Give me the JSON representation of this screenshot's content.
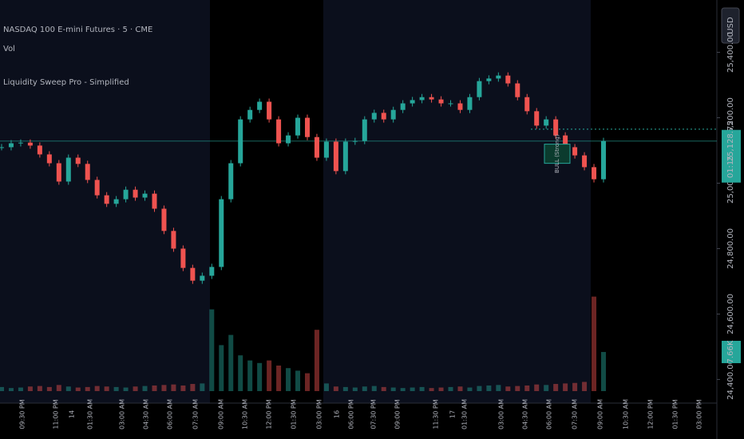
{
  "chart_data": {
    "type": "candlestick",
    "title": "NASDAQ 100 E-mini Futures · 5 · CME",
    "indicator": "Liquidity Sweep Pro - Simplified",
    "currency": "USD",
    "categories": [
      null,
      null,
      null,
      null,
      null,
      null,
      null,
      null,
      null,
      null,
      null,
      null,
      null,
      null,
      null,
      null,
      null,
      null,
      null,
      null,
      null,
      null,
      null,
      null,
      null,
      null,
      null,
      null,
      null,
      null,
      null,
      null,
      null,
      null,
      null,
      null,
      null,
      null,
      null,
      null,
      null,
      null,
      null,
      null,
      null,
      null,
      null,
      null,
      null,
      null,
      null,
      null,
      null,
      null,
      null,
      null,
      null,
      null,
      null,
      null,
      null,
      null,
      null,
      null
    ],
    "series": [
      {
        "name": "NASDAQ 100 E-mini Futures · 5 · CME",
        "up_color": "#26a69a",
        "down_color": "#ef5350",
        "values": [
          25110,
          25122,
          25124,
          25115,
          25088,
          25061,
          25005,
          25078,
          25059,
          25010,
          24963,
          24937,
          24951,
          24980,
          24956,
          24968,
          24922,
          24854,
          24800,
          24741,
          24702,
          24717,
          24744,
          24951,
          25061,
          25195,
          25224,
          25249,
          25195,
          25122,
          25146,
          25200,
          25141,
          25078,
          25127,
          25037,
          25127,
          25129,
          25195,
          25215,
          25195,
          25224,
          25244,
          25254,
          25263,
          25256,
          25244,
          25244,
          25224,
          25263,
          25312,
          25320,
          25329,
          25305,
          25263,
          25220,
          25176,
          25195,
          25146,
          25110,
          25085,
          25049,
          25012,
          25129
        ]
      },
      {
        "name": "Vol",
        "axis": "y2",
        "values": [
          800,
          600,
          700,
          900,
          1000,
          800,
          1200,
          900,
          700,
          800,
          1000,
          900,
          800,
          700,
          900,
          1000,
          1100,
          1200,
          1300,
          1100,
          1400,
          1500,
          16000,
          9000,
          11000,
          7000,
          6000,
          5500,
          6000,
          5000,
          4500,
          4000,
          3500,
          12000,
          1500,
          900,
          800,
          700,
          900,
          1000,
          800,
          700,
          600,
          700,
          800,
          600,
          700,
          800,
          900,
          700,
          1000,
          1100,
          1200,
          900,
          1000,
          1100,
          1300,
          1200,
          1400,
          1500,
          1600,
          1800,
          18500,
          7660
        ],
        "last_label": "7.66K"
      }
    ],
    "ylim": [
      24340,
      25560
    ],
    "yticks": [
      {
        "value": 25400,
        "label": "25,400.00"
      },
      {
        "value": 25200,
        "label": "25,200.00"
      },
      {
        "value": 25000,
        "label": "25,000.00"
      },
      {
        "value": 24800,
        "label": "24,800.00"
      },
      {
        "value": 24600,
        "label": "24,600.00"
      },
      {
        "value": 24400,
        "label": "24,400.00"
      }
    ],
    "y2lim": [
      0,
      50000
    ],
    "last_price": {
      "value": 25128.75,
      "label": "25,128.75"
    },
    "countdown": "01:15",
    "sweep_level": 25165,
    "signal": {
      "text": "BULL (Strong)",
      "value": 25090
    },
    "time_labels": [
      "09:30 PM",
      "11:00 PM",
      "14",
      "01:30 AM",
      "03:00 AM",
      "04:30 AM",
      "06:00 AM",
      "07:30 AM",
      "09:00 AM",
      "10:30 AM",
      "12:00 PM",
      "01:30 PM",
      "03:00 PM",
      "16",
      "06:00 PM",
      "07:30 PM",
      "09:00 PM",
      "11:30 PM",
      "17",
      "01:30 AM",
      "03:00 AM",
      "04:30 AM",
      "06:00 AM",
      "07:30 AM",
      "09:00 AM",
      "10:30 AM",
      "12:00 PM",
      "01:30 PM",
      "03:00 PM"
    ]
  }
}
